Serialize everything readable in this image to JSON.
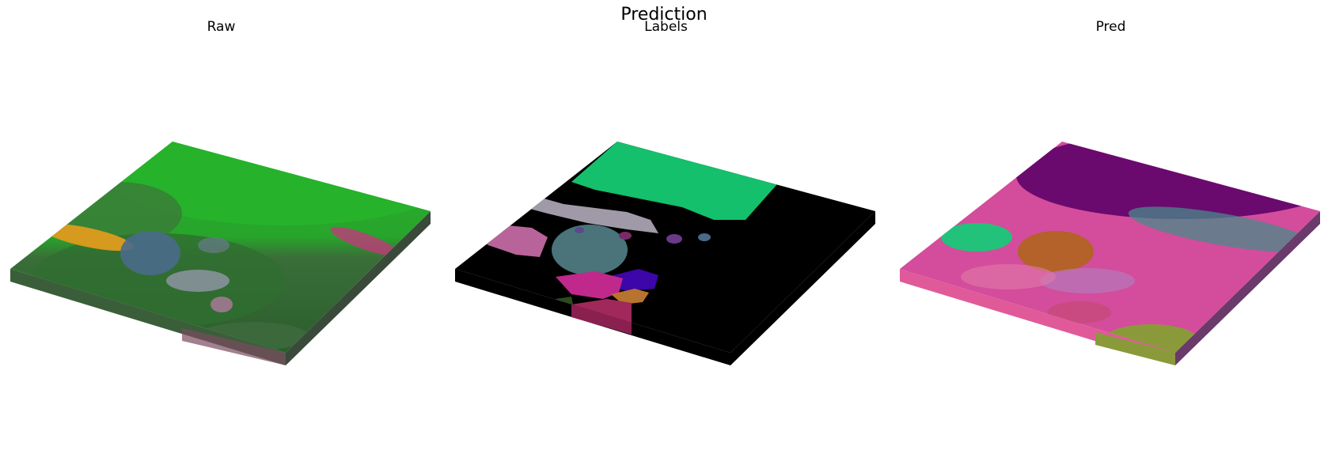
{
  "figure": {
    "title": "Prediction"
  },
  "panels": [
    {
      "title": "Raw"
    },
    {
      "title": "Labels"
    },
    {
      "title": "Pred"
    }
  ],
  "colors": {
    "raw_base": "#2e6b2e",
    "raw_green": "#26b22a",
    "raw_orange": "#d69a1e",
    "raw_blue": "#4a6a8a",
    "raw_magenta": "#c03a7a",
    "labels_background": "#000000",
    "labels_green": "#14c06b",
    "labels_gray": "#a09aa8",
    "labels_pink": "#b8649a",
    "labels_teal": "#4a737a",
    "labels_blue": "#3c06a8",
    "labels_magenta": "#c0288c",
    "labels_orange": "#b8742e",
    "labels_crimson": "#a0285a",
    "labels_olive": "#2e4a1c",
    "pred_base": "#d44c9c",
    "pred_purple": "#6a0a6e",
    "pred_green": "#22c27a",
    "pred_orange": "#b0641e",
    "pred_teal": "#4a8a8a",
    "pred_olive": "#8a9a3a"
  }
}
